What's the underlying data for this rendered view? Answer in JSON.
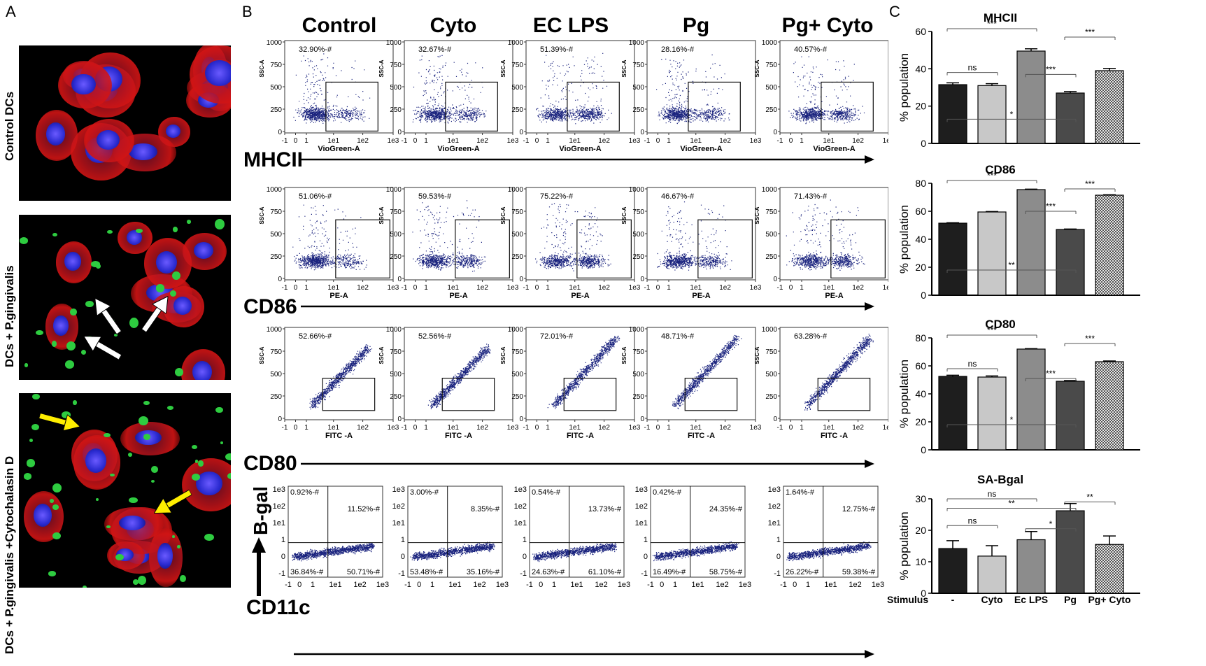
{
  "panels": {
    "a": "A",
    "b": "B",
    "c": "C"
  },
  "panel_a": {
    "rows": [
      "Control DCs",
      "DCs + P.gingivalis",
      "DCs + P.gingivalis +Cytochalasin D"
    ]
  },
  "panel_b": {
    "columns": [
      "Control",
      "Cyto",
      "EC LPS",
      "Pg",
      "Pg+ Cyto"
    ],
    "rows": [
      {
        "marker": "MHCII",
        "xlabel": "VioGreen-A",
        "ylabel": "SSC-A",
        "pcts": [
          "32.90%-#",
          "32.67%-#",
          "51.39%-#",
          "28.16%-#",
          "40.57%-#"
        ]
      },
      {
        "marker": "CD86",
        "xlabel": "PE-A",
        "ylabel": "SSC-A",
        "pcts": [
          "51.06%-#",
          "59.53%-#",
          "75.22%-#",
          "46.67%-#",
          "71.43%-#"
        ]
      },
      {
        "marker": "CD80",
        "xlabel": "FITC -A",
        "ylabel": "SSC-A",
        "pcts": [
          "52.66%-#",
          "52.56%-#",
          "72.01%-#",
          "48.71%-#",
          "63.28%-#"
        ]
      },
      {
        "marker": "CD11c",
        "ylabel": "B-gal",
        "quads": [
          [
            "0.92%-#",
            "11.52%-#",
            "36.84%-#",
            "50.71%-#"
          ],
          [
            "3.00%-#",
            "8.35%-#",
            "53.48%-#",
            "35.16%-#"
          ],
          [
            "0.54%-#",
            "13.73%-#",
            "24.63%-#",
            "61.10%-#"
          ],
          [
            "0.42%-#",
            "24.35%-#",
            "16.49%-#",
            "58.75%-#"
          ],
          [
            "1.64%-#",
            "12.75%-#",
            "26.22%-#",
            "59.38%-#"
          ]
        ]
      }
    ],
    "yticks": [
      "1000",
      "750",
      "500",
      "250",
      "0"
    ],
    "xticks": [
      "-1",
      "0",
      "1",
      "1e1",
      "1e2",
      "1e3"
    ],
    "log_yticks": [
      "1e3",
      "1e2",
      "1e1",
      "1",
      "0",
      "-1"
    ]
  },
  "chart_data": [
    {
      "type": "bar",
      "title": "MHCII",
      "ylabel": "% population",
      "ylim": [
        0,
        60
      ],
      "yticks": [
        "0",
        "20",
        "40",
        "60"
      ],
      "categories": [
        "-",
        "Cyto",
        "Ec LPS",
        "Pg",
        "Pg+ Cyto"
      ],
      "values": [
        31.5,
        31,
        49.5,
        27,
        39
      ],
      "errors": [
        1,
        1,
        1.2,
        0.8,
        1.2
      ],
      "sig": [
        "***",
        "ns",
        "***",
        "***",
        "*"
      ]
    },
    {
      "type": "bar",
      "title": "CD86",
      "ylabel": "% population",
      "ylim": [
        0,
        80
      ],
      "yticks": [
        "0",
        "20",
        "40",
        "60",
        "80"
      ],
      "categories": [
        "-",
        "Cyto",
        "Ec LPS",
        "Pg",
        "Pg+ Cyto"
      ],
      "values": [
        51.5,
        59.5,
        75.5,
        47,
        71.5
      ],
      "errors": [
        0.3,
        0.3,
        0.3,
        0.3,
        0.3
      ],
      "sig": [
        "***",
        "***",
        "***",
        "**"
      ]
    },
    {
      "type": "bar",
      "title": "CD80",
      "ylabel": "% population",
      "ylim": [
        0,
        80
      ],
      "yticks": [
        "0",
        "20",
        "40",
        "60",
        "80"
      ],
      "categories": [
        "-",
        "Cyto",
        "Ec LPS",
        "Pg",
        "Pg+ Cyto"
      ],
      "values": [
        52.5,
        52,
        72,
        49,
        63
      ],
      "errors": [
        0.8,
        0.8,
        0.3,
        0.5,
        0.5
      ],
      "sig": [
        "***",
        "ns",
        "***",
        "***",
        "*"
      ]
    },
    {
      "type": "bar",
      "title": "SA-Bgal",
      "ylabel": "% population",
      "ylim": [
        0,
        30
      ],
      "yticks": [
        "0",
        "10",
        "20",
        "30"
      ],
      "categories": [
        "-",
        "Cyto",
        "Ec LPS",
        "Pg",
        "Pg+ Cyto"
      ],
      "values": [
        14.2,
        11.8,
        17,
        26.2,
        15.5
      ],
      "errors": [
        2.5,
        3.3,
        2.6,
        2.3,
        2.7
      ],
      "sig": [
        "ns",
        "**",
        "**",
        "ns",
        "*"
      ]
    }
  ],
  "stimulus_label": "Stimulus",
  "colors": {
    "dots": "#1a237e",
    "bar1": "#1e1e1e",
    "bar2": "#c8c8c8",
    "bar3": "#8c8c8c",
    "bar4": "#4a4a4a",
    "bar5": "#d8d8d8",
    "green": "#2ecc40",
    "red": "#d01010",
    "blue": "#2a2ad0"
  }
}
